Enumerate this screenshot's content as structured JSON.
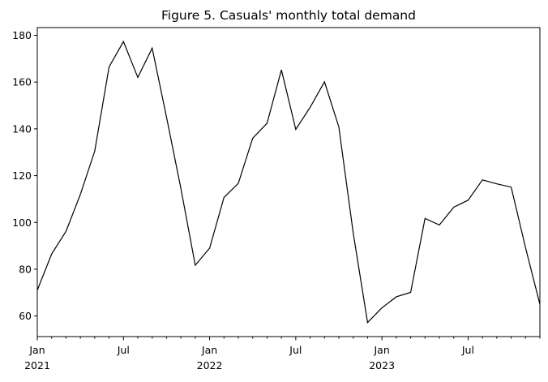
{
  "chart_data": {
    "type": "line",
    "title": "Figure 5. Casuals' monthly total demand",
    "xlabel": "",
    "ylabel": "",
    "x": [
      "2021-01",
      "2021-02",
      "2021-03",
      "2021-04",
      "2021-05",
      "2021-06",
      "2021-07",
      "2021-08",
      "2021-09",
      "2021-10",
      "2021-11",
      "2021-12",
      "2022-01",
      "2022-02",
      "2022-03",
      "2022-04",
      "2022-05",
      "2022-06",
      "2022-07",
      "2022-08",
      "2022-09",
      "2022-10",
      "2022-11",
      "2022-12",
      "2023-01",
      "2023-02",
      "2023-03",
      "2023-04",
      "2023-05",
      "2023-06",
      "2023-07",
      "2023-08",
      "2023-09",
      "2023-10",
      "2023-11",
      "2023-12"
    ],
    "series": [
      {
        "values": [
          71.0,
          86.5,
          96.2,
          112.0,
          130.5,
          166.5,
          177.3,
          162.0,
          174.5,
          145.0,
          114.5,
          81.7,
          89.0,
          110.7,
          116.7,
          136.0,
          142.4,
          165.2,
          139.8,
          149.2,
          160.1,
          140.8,
          95.5,
          57.2,
          63.5,
          68.2,
          70.1,
          101.7,
          98.9,
          106.5,
          109.5,
          118.2,
          116.5,
          115.1,
          89.2,
          65.0
        ],
        "color": "#000000"
      }
    ],
    "ylim": [
      51.2,
      183.3
    ],
    "y_ticks": [
      60,
      80,
      100,
      120,
      140,
      160,
      180
    ],
    "x_major_ticks": [
      {
        "index": 0,
        "line1": "Jan",
        "line2": "2021"
      },
      {
        "index": 6,
        "line1": "Jul",
        "line2": ""
      },
      {
        "index": 12,
        "line1": "Jan",
        "line2": "2022"
      },
      {
        "index": 18,
        "line1": "Jul",
        "line2": ""
      },
      {
        "index": 24,
        "line1": "Jan",
        "line2": "2023"
      },
      {
        "index": 30,
        "line1": "Jul",
        "line2": ""
      }
    ],
    "grid": false,
    "legend": "none"
  }
}
